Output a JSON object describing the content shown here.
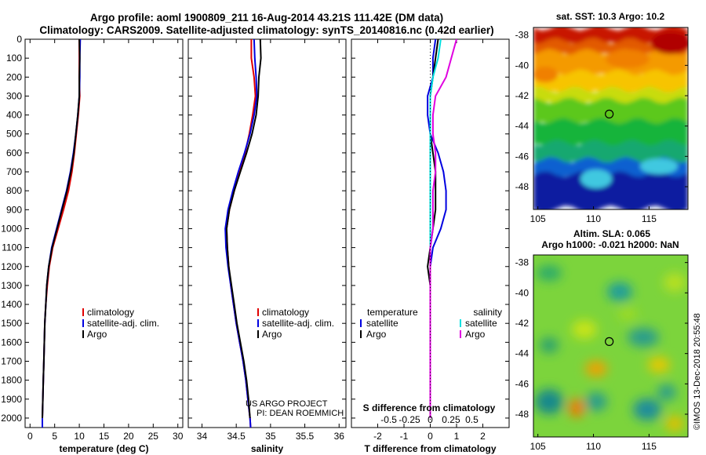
{
  "header": {
    "line1": "Argo profile: aoml 1900809_211 16-Aug-2014 43.21S 111.42E (DM data)",
    "line2": "Climatology: CARS2009. Satellite-adjusted climatology: synTS_20140816.nc (0.42d earlier)"
  },
  "depth_ticks": [
    "0",
    "100",
    "200",
    "300",
    "400",
    "500",
    "600",
    "700",
    "800",
    "900",
    "1000",
    "1100",
    "1200",
    "1300",
    "1400",
    "1500",
    "1600",
    "1700",
    "1800",
    "1900",
    "2000"
  ],
  "colors": {
    "climatology": "#e00000",
    "satellite": "#0000e0",
    "argo": "#000000",
    "sat_salinity": "#00e0e0",
    "argo_salinity": "#e000e0"
  },
  "project_note": {
    "line1": "US ARGO PROJECT",
    "line2": "PI: DEAN ROEMMICH"
  },
  "side_stamp": "©IMOS 13-Dec-2018 20:55:48",
  "chart_data": [
    {
      "type": "line",
      "name": "temperature-profile",
      "xlabel": "temperature (deg C)",
      "xlim": [
        -1,
        31
      ],
      "ylim": [
        2050,
        0
      ],
      "xticks": [
        0,
        5,
        10,
        15,
        20,
        25,
        30
      ],
      "legend": [
        "climatology",
        "satellite-adj. clim.",
        "Argo"
      ],
      "series": [
        {
          "name": "climatology",
          "color": "#e00000",
          "points": [
            [
              10.0,
              0
            ],
            [
              10.0,
              100
            ],
            [
              10.0,
              200
            ],
            [
              10.1,
              300
            ],
            [
              9.8,
              400
            ],
            [
              9.4,
              500
            ],
            [
              9.0,
              600
            ],
            [
              8.5,
              700
            ],
            [
              7.8,
              800
            ],
            [
              6.8,
              900
            ],
            [
              5.7,
              1000
            ],
            [
              4.6,
              1100
            ],
            [
              3.9,
              1200
            ],
            [
              3.5,
              1300
            ],
            [
              3.2,
              1400
            ],
            [
              3.0,
              1500
            ],
            [
              2.9,
              1600
            ],
            [
              2.8,
              1700
            ],
            [
              2.7,
              1800
            ],
            [
              2.6,
              1900
            ],
            [
              2.5,
              2000
            ],
            [
              2.5,
              2050
            ]
          ]
        },
        {
          "name": "satellite-adj. clim.",
          "color": "#0000e0",
          "points": [
            [
              10.2,
              0
            ],
            [
              10.1,
              100
            ],
            [
              10.1,
              200
            ],
            [
              10.0,
              300
            ],
            [
              9.7,
              400
            ],
            [
              9.3,
              500
            ],
            [
              8.8,
              600
            ],
            [
              8.2,
              700
            ],
            [
              7.4,
              800
            ],
            [
              6.4,
              900
            ],
            [
              5.4,
              1000
            ],
            [
              4.4,
              1100
            ],
            [
              3.8,
              1200
            ],
            [
              3.4,
              1300
            ],
            [
              3.2,
              1400
            ],
            [
              3.0,
              1500
            ],
            [
              2.9,
              1600
            ],
            [
              2.8,
              1700
            ],
            [
              2.7,
              1800
            ],
            [
              2.6,
              1900
            ],
            [
              2.5,
              2000
            ],
            [
              2.5,
              2050
            ]
          ]
        },
        {
          "name": "Argo",
          "color": "#000000",
          "points": [
            [
              10.0,
              0
            ],
            [
              10.1,
              100
            ],
            [
              10.0,
              200
            ],
            [
              10.0,
              300
            ],
            [
              9.7,
              400
            ],
            [
              9.3,
              500
            ],
            [
              8.9,
              600
            ],
            [
              8.3,
              700
            ],
            [
              7.5,
              800
            ],
            [
              6.5,
              900
            ],
            [
              5.5,
              1000
            ],
            [
              4.5,
              1100
            ],
            [
              3.8,
              1200
            ],
            [
              3.4,
              1300
            ],
            [
              3.2,
              1400
            ],
            [
              3.0,
              1500
            ],
            [
              2.9,
              1600
            ],
            [
              2.8,
              1700
            ],
            [
              2.7,
              1800
            ],
            [
              2.6,
              1900
            ],
            [
              2.5,
              2000
            ]
          ]
        }
      ]
    },
    {
      "type": "line",
      "name": "salinity-profile",
      "xlabel": "salinity",
      "xlim": [
        33.8,
        36.1
      ],
      "ylim": [
        2050,
        0
      ],
      "xticks": [
        34,
        34.5,
        35,
        35.5,
        36
      ],
      "legend": [
        "climatology",
        "satellite-adj. clim.",
        "Argo"
      ],
      "series": [
        {
          "name": "climatology",
          "color": "#e00000",
          "points": [
            [
              34.72,
              0
            ],
            [
              34.72,
              100
            ],
            [
              34.76,
              200
            ],
            [
              34.78,
              300
            ],
            [
              34.74,
              400
            ],
            [
              34.69,
              500
            ],
            [
              34.63,
              600
            ],
            [
              34.55,
              700
            ],
            [
              34.47,
              800
            ],
            [
              34.4,
              900
            ],
            [
              34.36,
              1000
            ],
            [
              34.37,
              1100
            ],
            [
              34.39,
              1200
            ],
            [
              34.42,
              1300
            ],
            [
              34.46,
              1400
            ],
            [
              34.5,
              1500
            ],
            [
              34.55,
              1600
            ],
            [
              34.6,
              1700
            ],
            [
              34.64,
              1800
            ],
            [
              34.67,
              1900
            ],
            [
              34.7,
              2000
            ],
            [
              34.71,
              2050
            ]
          ]
        },
        {
          "name": "satellite-adj. clim.",
          "color": "#0000e0",
          "points": [
            [
              34.76,
              0
            ],
            [
              34.77,
              100
            ],
            [
              34.79,
              200
            ],
            [
              34.8,
              300
            ],
            [
              34.76,
              400
            ],
            [
              34.7,
              500
            ],
            [
              34.62,
              600
            ],
            [
              34.53,
              700
            ],
            [
              34.45,
              800
            ],
            [
              34.38,
              900
            ],
            [
              34.34,
              1000
            ],
            [
              34.35,
              1100
            ],
            [
              34.38,
              1200
            ],
            [
              34.42,
              1300
            ],
            [
              34.46,
              1400
            ],
            [
              34.5,
              1500
            ],
            [
              34.55,
              1600
            ],
            [
              34.6,
              1700
            ],
            [
              34.64,
              1800
            ],
            [
              34.67,
              1900
            ],
            [
              34.7,
              2000
            ],
            [
              34.71,
              2050
            ]
          ]
        },
        {
          "name": "Argo",
          "color": "#000000",
          "points": [
            [
              34.85,
              0
            ],
            [
              34.86,
              100
            ],
            [
              34.83,
              200
            ],
            [
              34.82,
              300
            ],
            [
              34.79,
              400
            ],
            [
              34.73,
              500
            ],
            [
              34.65,
              600
            ],
            [
              34.56,
              700
            ],
            [
              34.47,
              800
            ],
            [
              34.4,
              900
            ],
            [
              34.36,
              1000
            ],
            [
              34.37,
              1100
            ],
            [
              34.39,
              1200
            ],
            [
              34.43,
              1300
            ],
            [
              34.47,
              1400
            ],
            [
              34.51,
              1500
            ],
            [
              34.56,
              1600
            ],
            [
              34.61,
              1700
            ],
            [
              34.65,
              1800
            ],
            [
              34.68,
              1900
            ],
            [
              34.7,
              2000
            ]
          ]
        }
      ]
    },
    {
      "type": "line",
      "name": "difference-profile",
      "xlabel": "T difference from climatology",
      "xlabel_top": "S difference from climatology",
      "xlim": [
        -3,
        3
      ],
      "ylim": [
        2050,
        0
      ],
      "xticks": [
        -2,
        -1,
        0,
        1,
        2
      ],
      "xticks_top": [
        "-0.5",
        "-0.25",
        "0",
        "0.25",
        "0.5"
      ],
      "legend": [
        "temperature",
        "satellite",
        "Argo",
        "salinity",
        "satellite",
        "Argo"
      ],
      "series": [
        {
          "name": "temperature satellite",
          "color": "#0000e0",
          "points": [
            [
              0.2,
              0
            ],
            [
              0.1,
              100
            ],
            [
              0.1,
              200
            ],
            [
              -0.1,
              300
            ],
            [
              -0.1,
              400
            ],
            [
              0.0,
              500
            ],
            [
              0.3,
              600
            ],
            [
              0.5,
              700
            ],
            [
              0.6,
              800
            ],
            [
              0.6,
              900
            ],
            [
              0.4,
              1000
            ],
            [
              0.1,
              1100
            ],
            [
              0.0,
              1200
            ],
            [
              0.0,
              1300
            ],
            [
              0.0,
              1500
            ],
            [
              0.0,
              2000
            ]
          ]
        },
        {
          "name": "temperature Argo",
          "color": "#000000",
          "points": [
            [
              0.3,
              0
            ],
            [
              0.2,
              100
            ],
            [
              0.1,
              200
            ],
            [
              0.0,
              300
            ],
            [
              0.0,
              400
            ],
            [
              0.0,
              500
            ],
            [
              0.1,
              600
            ],
            [
              0.2,
              700
            ],
            [
              0.2,
              800
            ],
            [
              0.2,
              900
            ],
            [
              0.1,
              1000
            ],
            [
              0.0,
              1100
            ],
            [
              -0.1,
              1200
            ],
            [
              0.0,
              1300
            ],
            [
              0.0,
              1500
            ],
            [
              0.0,
              2000
            ]
          ]
        },
        {
          "name": "salinity satellite",
          "color": "#00e0e0",
          "points": [
            [
              0.4,
              0
            ],
            [
              0.3,
              100
            ],
            [
              0.1,
              200
            ],
            [
              0.0,
              300
            ],
            [
              0.0,
              400
            ],
            [
              0.0,
              500
            ],
            [
              0.0,
              600
            ],
            [
              0.0,
              700
            ],
            [
              0.0,
              800
            ],
            [
              0.0,
              900
            ],
            [
              0.0,
              1000
            ],
            [
              0.0,
              1100
            ],
            [
              0.0,
              1200
            ],
            [
              0.0,
              1400
            ],
            [
              0.0,
              2000
            ]
          ]
        },
        {
          "name": "salinity Argo",
          "color": "#e000e0",
          "points": [
            [
              1.0,
              0
            ],
            [
              0.8,
              100
            ],
            [
              0.6,
              200
            ],
            [
              0.2,
              300
            ],
            [
              0.1,
              400
            ],
            [
              0.1,
              500
            ],
            [
              0.2,
              600
            ],
            [
              0.2,
              700
            ],
            [
              0.1,
              800
            ],
            [
              0.1,
              900
            ],
            [
              0.1,
              1000
            ],
            [
              0.0,
              1100
            ],
            [
              0.0,
              1200
            ],
            [
              0.0,
              1400
            ],
            [
              0.0,
              2000
            ]
          ]
        }
      ]
    },
    {
      "type": "heatmap",
      "name": "sst-map",
      "title": "sat. SST: 10.3 Argo: 10.2",
      "xlim": [
        104.6,
        118.5
      ],
      "ylim": [
        -49.5,
        -37.5
      ],
      "xticks": [
        105,
        110,
        115
      ],
      "yticks": [
        -38,
        -40,
        -42,
        -44,
        -46,
        -48
      ],
      "marker": {
        "lon": 111.42,
        "lat": -43.21
      }
    },
    {
      "type": "heatmap",
      "name": "sla-map",
      "title": "Altim. SLA: 0.065",
      "subtitle": "Argo h1000: -0.021 h2000: NaN",
      "xlim": [
        104.6,
        118.5
      ],
      "ylim": [
        -49.5,
        -37.5
      ],
      "xticks": [
        105,
        110,
        115
      ],
      "yticks": [
        -38,
        -40,
        -42,
        -44,
        -46,
        -48
      ],
      "marker": {
        "lon": 111.42,
        "lat": -43.21
      }
    }
  ]
}
